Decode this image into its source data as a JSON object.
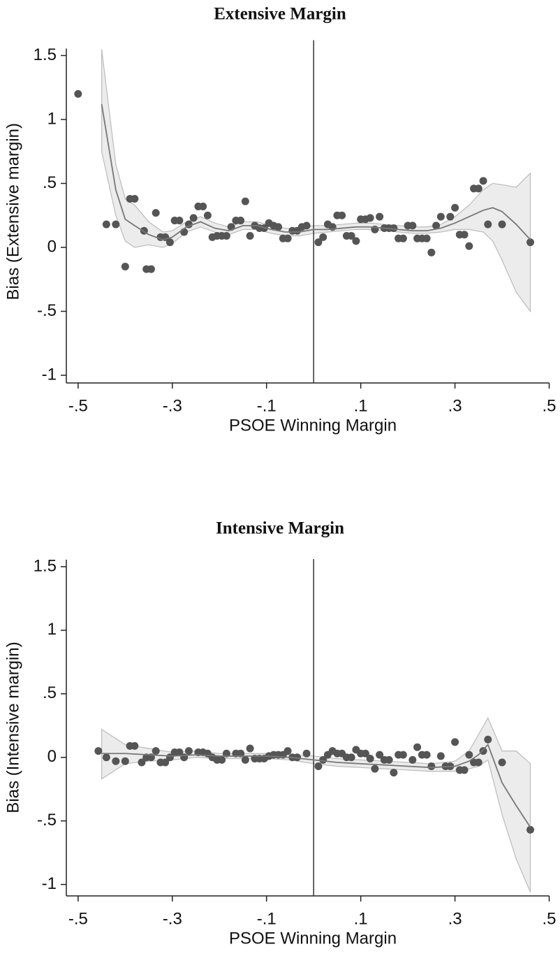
{
  "chart_data": [
    {
      "type": "scatter",
      "title": "Extensive Margin",
      "x_label": "PSOE Winning Margin",
      "y_label": "Bias (Extensive margin)",
      "xlim": [
        -0.525,
        0.52
      ],
      "ylim": [
        -1.06,
        1.62
      ],
      "xticks": [
        {
          "value": -0.5,
          "label": "-.5"
        },
        {
          "value": -0.3,
          "label": "-.3"
        },
        {
          "value": -0.1,
          "label": "-.1"
        },
        {
          "value": 0.1,
          "label": ".1"
        },
        {
          "value": 0.3,
          "label": ".3"
        },
        {
          "value": 0.5,
          "label": ".5"
        }
      ],
      "yticks": [
        -1,
        {
          "value": -0.5,
          "label": "-.5"
        },
        0,
        {
          "value": 0.5,
          "label": ".5"
        },
        1,
        1.5
      ],
      "vline": 0,
      "point_color": "#555555",
      "line_color": "#777777",
      "band_color": "#ececec",
      "points": {
        "x": [
          -0.5,
          -0.44,
          -0.42,
          -0.4,
          -0.39,
          -0.38,
          -0.36,
          -0.355,
          -0.345,
          -0.335,
          -0.325,
          -0.315,
          -0.305,
          -0.295,
          -0.285,
          -0.275,
          -0.265,
          -0.255,
          -0.245,
          -0.235,
          -0.225,
          -0.215,
          -0.205,
          -0.195,
          -0.185,
          -0.175,
          -0.165,
          -0.155,
          -0.145,
          -0.135,
          -0.125,
          -0.115,
          -0.105,
          -0.095,
          -0.085,
          -0.075,
          -0.065,
          -0.055,
          -0.045,
          -0.035,
          -0.025,
          -0.015,
          0.01,
          0.02,
          0.03,
          0.04,
          0.05,
          0.06,
          0.07,
          0.08,
          0.09,
          0.1,
          0.11,
          0.12,
          0.13,
          0.14,
          0.15,
          0.16,
          0.17,
          0.18,
          0.19,
          0.2,
          0.21,
          0.22,
          0.23,
          0.24,
          0.25,
          0.26,
          0.27,
          0.29,
          0.3,
          0.31,
          0.32,
          0.33,
          0.34,
          0.35,
          0.36,
          0.37,
          0.4,
          0.46
        ],
        "y": [
          1.2,
          0.18,
          0.18,
          -0.15,
          0.38,
          0.38,
          0.13,
          -0.17,
          -0.17,
          0.27,
          0.08,
          0.08,
          0.04,
          0.21,
          0.21,
          0.12,
          0.18,
          0.23,
          0.32,
          0.32,
          0.25,
          0.08,
          0.09,
          0.09,
          0.09,
          0.16,
          0.21,
          0.21,
          0.36,
          0.09,
          0.17,
          0.15,
          0.15,
          0.19,
          0.17,
          0.16,
          0.07,
          0.07,
          0.13,
          0.13,
          0.16,
          0.17,
          0.04,
          0.08,
          0.18,
          0.16,
          0.25,
          0.25,
          0.09,
          0.09,
          0.05,
          0.22,
          0.22,
          0.23,
          0.14,
          0.24,
          0.15,
          0.15,
          0.15,
          0.07,
          0.07,
          0.17,
          0.17,
          0.07,
          0.07,
          0.07,
          -0.04,
          0.17,
          0.24,
          0.24,
          0.31,
          0.1,
          0.1,
          0.01,
          0.46,
          0.46,
          0.52,
          0.18,
          0.18,
          0.04
        ]
      },
      "fit": {
        "x": [
          -0.45,
          -0.42,
          -0.4,
          -0.38,
          -0.35,
          -0.32,
          -0.3,
          -0.27,
          -0.24,
          -0.21,
          -0.18,
          -0.15,
          -0.12,
          -0.09,
          -0.06,
          -0.03,
          0,
          0.03,
          0.06,
          0.09,
          0.12,
          0.15,
          0.18,
          0.21,
          0.24,
          0.27,
          0.3,
          0.33,
          0.36,
          0.38,
          0.4,
          0.43,
          0.46
        ],
        "values": [
          1.12,
          0.45,
          0.22,
          0.17,
          0.1,
          0.06,
          0.08,
          0.16,
          0.2,
          0.15,
          0.13,
          0.17,
          0.17,
          0.14,
          0.12,
          0.12,
          0.14,
          0.14,
          0.15,
          0.16,
          0.16,
          0.15,
          0.14,
          0.13,
          0.13,
          0.15,
          0.19,
          0.24,
          0.29,
          0.31,
          0.28,
          0.18,
          0.06
        ],
        "lower": [
          0.75,
          0.25,
          0.05,
          0,
          0.02,
          0,
          0.03,
          0.12,
          0.16,
          0.12,
          0.1,
          0.14,
          0.14,
          0.11,
          0.09,
          0.09,
          0.11,
          0.12,
          0.13,
          0.14,
          0.14,
          0.13,
          0.12,
          0.11,
          0.11,
          0.12,
          0.14,
          0.14,
          0.12,
          0.05,
          -0.1,
          -0.35,
          -0.5
        ],
        "upper": [
          1.55,
          0.65,
          0.38,
          0.33,
          0.2,
          0.12,
          0.13,
          0.2,
          0.24,
          0.19,
          0.16,
          0.2,
          0.2,
          0.17,
          0.15,
          0.15,
          0.17,
          0.17,
          0.18,
          0.19,
          0.19,
          0.18,
          0.17,
          0.16,
          0.16,
          0.18,
          0.24,
          0.33,
          0.45,
          0.5,
          0.49,
          0.47,
          0.58
        ]
      }
    },
    {
      "type": "scatter",
      "title": "Intensive Margin",
      "x_label": "PSOE Winning Margin",
      "y_label": "Bias (Intensive margin)",
      "xlim": [
        -0.525,
        0.52
      ],
      "ylim": [
        -1.09,
        1.56
      ],
      "xticks": [
        {
          "value": -0.5,
          "label": "-.5"
        },
        {
          "value": -0.3,
          "label": "-.3"
        },
        {
          "value": -0.1,
          "label": "-.1"
        },
        {
          "value": 0.1,
          "label": ".1"
        },
        {
          "value": 0.3,
          "label": ".3"
        },
        {
          "value": 0.5,
          "label": ".5"
        }
      ],
      "yticks": [
        -1,
        {
          "value": -0.5,
          "label": "-.5"
        },
        0,
        {
          "value": 0.5,
          "label": ".5"
        },
        1,
        1.5
      ],
      "vline": 0,
      "point_color": "#555555",
      "line_color": "#777777",
      "band_color": "#ececec",
      "points": {
        "x": [
          -0.457,
          -0.44,
          -0.42,
          -0.4,
          -0.39,
          -0.38,
          -0.365,
          -0.355,
          -0.345,
          -0.335,
          -0.325,
          -0.315,
          -0.305,
          -0.295,
          -0.285,
          -0.275,
          -0.265,
          -0.245,
          -0.235,
          -0.225,
          -0.215,
          -0.205,
          -0.195,
          -0.185,
          -0.165,
          -0.155,
          -0.145,
          -0.135,
          -0.125,
          -0.115,
          -0.105,
          -0.095,
          -0.085,
          -0.075,
          -0.065,
          -0.055,
          -0.045,
          -0.035,
          -0.015,
          0.01,
          0.02,
          0.03,
          0.04,
          0.05,
          0.06,
          0.07,
          0.08,
          0.09,
          0.1,
          0.11,
          0.12,
          0.13,
          0.14,
          0.15,
          0.16,
          0.17,
          0.18,
          0.19,
          0.21,
          0.22,
          0.23,
          0.24,
          0.25,
          0.27,
          0.28,
          0.29,
          0.3,
          0.31,
          0.32,
          0.33,
          0.34,
          0.35,
          0.36,
          0.37,
          0.4,
          0.46
        ],
        "y": [
          0.05,
          0,
          -0.03,
          -0.03,
          0.09,
          0.09,
          -0.04,
          0,
          0,
          0.05,
          -0.04,
          -0.04,
          0,
          0.04,
          0.04,
          0,
          0.05,
          0.04,
          0.04,
          0.03,
          0,
          -0.02,
          -0.02,
          0.03,
          0.03,
          0.03,
          -0.02,
          0.07,
          -0.01,
          -0.01,
          -0.01,
          0.01,
          0.02,
          0.02,
          0.02,
          0.05,
          0,
          0,
          0.03,
          -0.07,
          -0.02,
          0.02,
          0.05,
          0.03,
          0.03,
          0,
          0,
          0.06,
          0.03,
          0.03,
          -0.01,
          -0.09,
          0.02,
          -0.02,
          -0.02,
          -0.12,
          0.02,
          0.02,
          -0.02,
          0.08,
          0.02,
          0.02,
          -0.07,
          0.01,
          -0.07,
          -0.07,
          0.12,
          -0.1,
          -0.1,
          0.02,
          -0.04,
          -0.04,
          0.05,
          0.14,
          -0.04,
          -0.57
        ]
      },
      "fit": {
        "x": [
          -0.45,
          -0.4,
          -0.35,
          -0.3,
          -0.25,
          -0.2,
          -0.15,
          -0.1,
          -0.05,
          0,
          0.05,
          0.1,
          0.15,
          0.2,
          0.25,
          0.3,
          0.33,
          0.35,
          0.37,
          0.4,
          0.43,
          0.46
        ],
        "values": [
          0.03,
          0.03,
          0.02,
          0.01,
          0.02,
          0.01,
          0.01,
          0.01,
          0,
          -0.02,
          -0.04,
          -0.05,
          -0.06,
          -0.07,
          -0.08,
          -0.07,
          -0.03,
          0.02,
          0.1,
          -0.2,
          -0.38,
          -0.55
        ],
        "lower": [
          -0.17,
          -0.05,
          -0.03,
          -0.02,
          0,
          -0.01,
          -0.01,
          -0.01,
          -0.02,
          -0.05,
          -0.07,
          -0.08,
          -0.09,
          -0.1,
          -0.11,
          -0.11,
          -0.09,
          -0.07,
          -0.02,
          -0.45,
          -0.8,
          -1.06
        ],
        "upper": [
          0.22,
          0.1,
          0.07,
          0.04,
          0.05,
          0.03,
          0.03,
          0.03,
          0.02,
          0.01,
          -0.01,
          -0.02,
          -0.03,
          -0.04,
          -0.05,
          -0.03,
          0.05,
          0.18,
          0.31,
          0.05,
          0.05,
          -0.05
        ]
      }
    }
  ]
}
